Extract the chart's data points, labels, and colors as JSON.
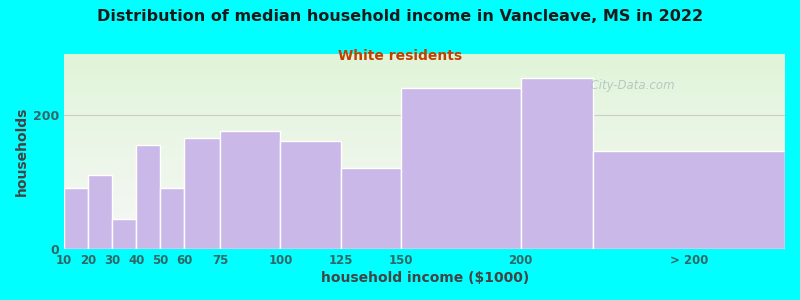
{
  "title": "Distribution of median household income in Vancleave, MS in 2022",
  "subtitle": "White residents",
  "xlabel": "household income ($1000)",
  "ylabel": "households",
  "background_outer": "#00FFFF",
  "background_inner_top": "#dff0d8",
  "background_inner_bottom": "#f8f8f8",
  "bar_color": "#c9b8e8",
  "bar_edge_color": "#ffffff",
  "title_color": "#1a1a1a",
  "subtitle_color": "#c04000",
  "axis_label_color": "#444444",
  "tick_label_color": "#336666",
  "watermark_text": "  City-Data.com",
  "watermark_color": "#b0c0c0",
  "bin_edges": [
    10,
    20,
    30,
    40,
    50,
    60,
    75,
    100,
    125,
    150,
    200,
    230,
    310
  ],
  "bar_heights": [
    90,
    110,
    45,
    155,
    90,
    165,
    175,
    160,
    120,
    240,
    255,
    145
  ],
  "xtick_labels": [
    "10",
    "20",
    "30",
    "40",
    "50",
    "60",
    "75",
    "100",
    "125",
    "150",
    "200",
    "> 200"
  ],
  "xtick_positions": [
    10,
    20,
    30,
    40,
    50,
    60,
    75,
    100,
    125,
    150,
    200,
    270
  ],
  "ylim": [
    0,
    290
  ],
  "yticks": [
    0,
    200
  ],
  "grid_y": 200,
  "grid_color": "#cccccc",
  "figsize": [
    8.0,
    3.0
  ],
  "dpi": 100
}
